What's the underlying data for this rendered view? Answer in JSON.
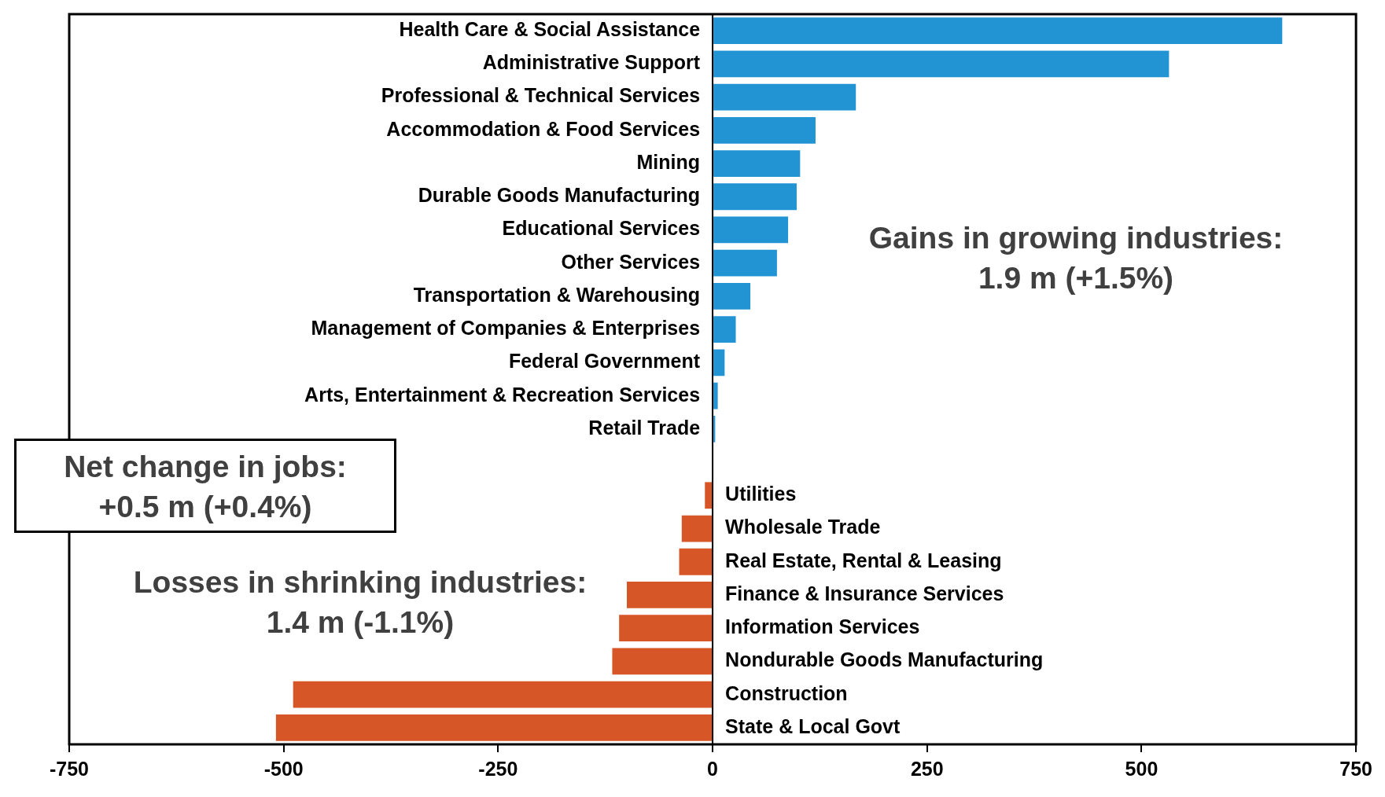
{
  "chart_data": {
    "type": "bar",
    "orientation": "horizontal",
    "categories": [
      "Health Care & Social Assistance",
      "Administrative Support",
      "Professional & Technical Services",
      "Accommodation & Food Services",
      "Mining",
      "Durable Goods Manufacturing",
      "Educational Services",
      "Other Services",
      "Transportation & Warehousing",
      "Management of Companies & Enterprises",
      "Federal Government",
      "Arts, Entertainment & Recreation Services",
      "Retail Trade",
      null,
      "Utilities",
      "Wholesale Trade",
      "Real Estate, Rental & Leasing",
      "Finance & Insurance Services",
      "Information Services",
      "Nondurable Goods Manufacturing",
      "Construction",
      "State & Local Govt"
    ],
    "values": [
      664,
      532,
      167,
      120,
      102,
      98,
      88,
      75,
      44,
      27,
      14,
      6,
      3,
      null,
      -9,
      -36,
      -39,
      -100,
      -109,
      -117,
      -489,
      -509
    ],
    "colors": [
      "#2394d3",
      "#2394d3",
      "#2394d3",
      "#2394d3",
      "#2394d3",
      "#2394d3",
      "#2394d3",
      "#2394d3",
      "#2394d3",
      "#2394d3",
      "#2394d3",
      "#2394d3",
      "#2394d3",
      null,
      "#d65627",
      "#d65627",
      "#d65627",
      "#d65627",
      "#d65627",
      "#d65627",
      "#d65627",
      "#d65627"
    ],
    "xlim": [
      -750,
      750
    ],
    "xticks": [
      -750,
      -500,
      -250,
      0,
      250,
      500,
      750
    ],
    "grid": false,
    "legend": false,
    "annotations": [
      "Gains in growing industries:\n1.9 m (+1.5%)",
      "Net change in jobs:\n+0.5 m (+0.4%)",
      "Losses in shrinking industries:\n1.4 m (-1.1%)"
    ]
  }
}
